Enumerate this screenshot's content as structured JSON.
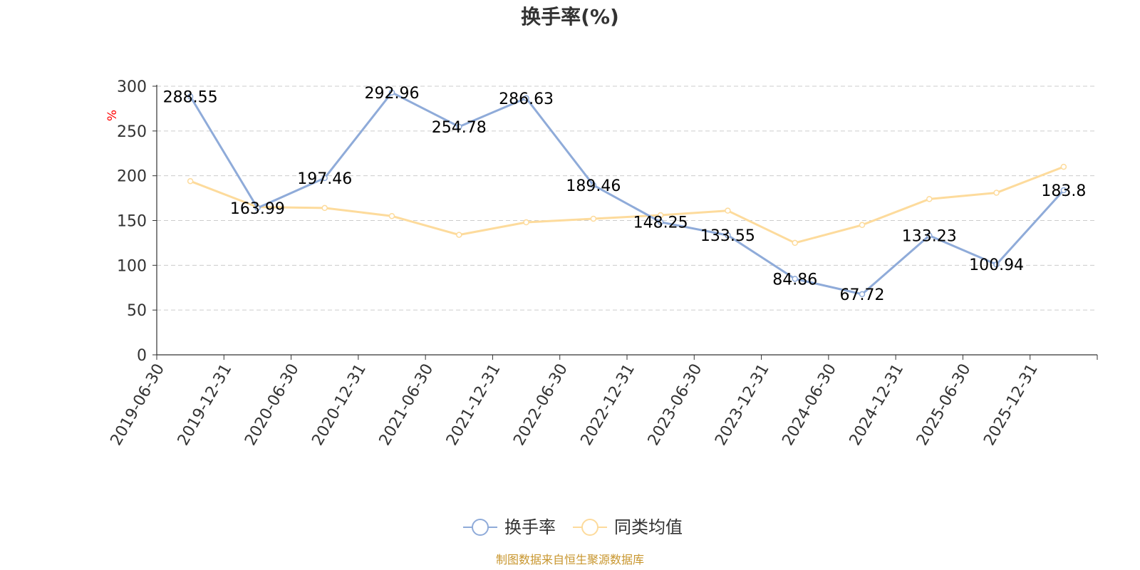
{
  "chart_data": {
    "type": "line",
    "title": "换手率(%)",
    "ylabel": "%",
    "xlabel": "",
    "ylim": [
      0,
      300
    ],
    "yticks": [
      0,
      50,
      100,
      150,
      200,
      250,
      300
    ],
    "grid": true,
    "legend_position": "bottom-center",
    "categories": [
      "2019-06-30",
      "2019-12-31",
      "2020-06-30",
      "2020-12-31",
      "2021-06-30",
      "2021-12-31",
      "2022-06-30",
      "2022-12-31",
      "2023-06-30",
      "2023-12-31",
      "2024-06-30",
      "2024-12-31",
      "2025-06-30",
      "2025-12-31"
    ],
    "series": [
      {
        "name": "换手率",
        "color": "#8fabd9",
        "values": [
          288.55,
          163.99,
          197.46,
          292.96,
          254.78,
          286.63,
          189.46,
          148.25,
          133.55,
          84.86,
          67.72,
          133.23,
          100.94,
          183.8
        ],
        "data_labels": [
          "288.55",
          "163.99",
          "197.46",
          "292.96",
          "254.78",
          "286.63",
          "189.46",
          "148.25",
          "133.55",
          "84.86",
          "67.72",
          "133.23",
          "100.94",
          "183.8"
        ]
      },
      {
        "name": "同类均值",
        "color": "#fddb9c",
        "values": [
          194,
          165,
          164,
          155,
          134,
          148,
          152,
          156,
          161,
          125,
          145,
          174,
          181,
          210
        ]
      }
    ],
    "source": "制图数据来自恒生聚源数据库",
    "colors": {
      "axis": "#333333",
      "grid": "#cccccc",
      "unit": "#ff0000",
      "source": "#c8962e"
    }
  }
}
